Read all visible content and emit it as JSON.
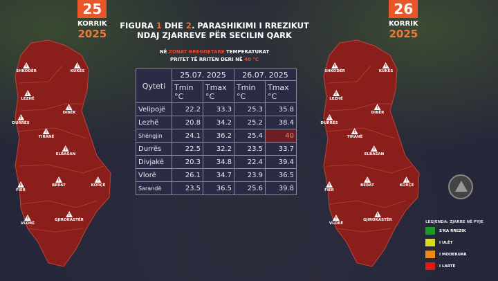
{
  "left": {
    "day": "25",
    "month": "KORRIK",
    "year": "2025"
  },
  "right": {
    "day": "26",
    "month": "KORRIK",
    "year": "2025"
  },
  "title": {
    "p1": "FIGURA ",
    "n1": "1",
    "p2": " DHE ",
    "n2": "2",
    "p3": ". PARASHIKIMI I RREZIKUT",
    "line2": "NDAJ ZJARREVE PËR SECILIN QARK"
  },
  "note": {
    "a": "NË ",
    "b": "ZONAT BREGDETARE",
    "c": " TEMPERATURAT",
    "line2": "PRITET TË RRITEN DERI NË ",
    "d": "40 °C"
  },
  "table": {
    "city_header": "Qyteti",
    "dates": [
      "25.07. 2025",
      "26.07. 2025"
    ],
    "cols": [
      "Tmin °C",
      "Tmax °C",
      "Tmin °C",
      "Tmax °C"
    ],
    "rows": [
      {
        "city": "Velipojë",
        "v": [
          "22.2",
          "33.3",
          "25.3",
          "35.8"
        ]
      },
      {
        "city": "Lezhë",
        "v": [
          "20.8",
          "34.2",
          "25.2",
          "38.4"
        ]
      },
      {
        "city": "Shëngjin",
        "v": [
          "24.1",
          "36.2",
          "25.4",
          "40"
        ]
      },
      {
        "city": "Durrës",
        "v": [
          "22.5",
          "32.2",
          "23.5",
          "33.7"
        ]
      },
      {
        "city": "Divjakë",
        "v": [
          "20.3",
          "34.8",
          "22.4",
          "39.4"
        ]
      },
      {
        "city": "Vlorë",
        "v": [
          "26.1",
          "34.7",
          "23.9",
          "36.5"
        ]
      },
      {
        "city": "Sarandë",
        "v": [
          "23.5",
          "36.5",
          "25.6",
          "39.8"
        ]
      }
    ]
  },
  "regions": [
    "SHKODËR",
    "KUKËS",
    "LEZHË",
    "DIBËR",
    "DURRËS",
    "TIRANË",
    "ELBASAN",
    "FIER",
    "BERAT",
    "KORÇË",
    "VLORË",
    "GJIROKASTËR"
  ],
  "legend": {
    "title": "LEGJENDA: ZJARRE NË PYJE",
    "items": [
      {
        "label": "S'KA RREZIK",
        "color": "#1e9a2a"
      },
      {
        "label": "I ULËT",
        "color": "#d8dc1a"
      },
      {
        "label": "I MODERUAR",
        "color": "#ea8a18"
      },
      {
        "label": "I LARTË",
        "color": "#e21818"
      }
    ]
  },
  "map_color": "#8a1e1a"
}
